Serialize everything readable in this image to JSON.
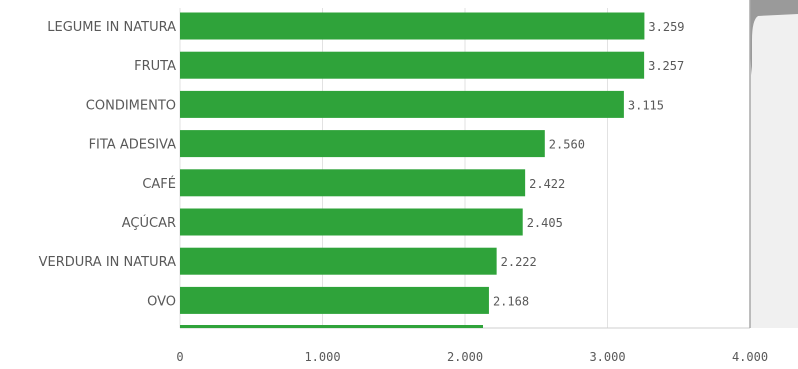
{
  "colors": {
    "bar": "#2fa33a",
    "scroll_thumb": "#9a9a9a",
    "scroll_track": "#f0f0f0"
  },
  "chart_data": {
    "type": "bar",
    "orientation": "horizontal",
    "categories": [
      "LEGUME IN NATURA",
      "FRUTA",
      "CONDIMENTO",
      "FITA ADESIVA",
      "CAFÉ",
      "AÇÚCAR",
      "VERDURA IN NATURA",
      "OVO"
    ],
    "values": [
      3259,
      3257,
      3115,
      2560,
      2422,
      2405,
      2222,
      2168
    ],
    "value_labels": [
      "3.259",
      "3.257",
      "3.115",
      "2.560",
      "2.422",
      "2.405",
      "2.222",
      "2.168"
    ],
    "x_ticks": [
      0,
      1000,
      2000,
      3000,
      4000
    ],
    "x_tick_labels": [
      "0",
      "1.000",
      "2.000",
      "3.000",
      "4.000"
    ],
    "xlim": [
      0,
      4000
    ],
    "grid": true,
    "legend": "none"
  }
}
